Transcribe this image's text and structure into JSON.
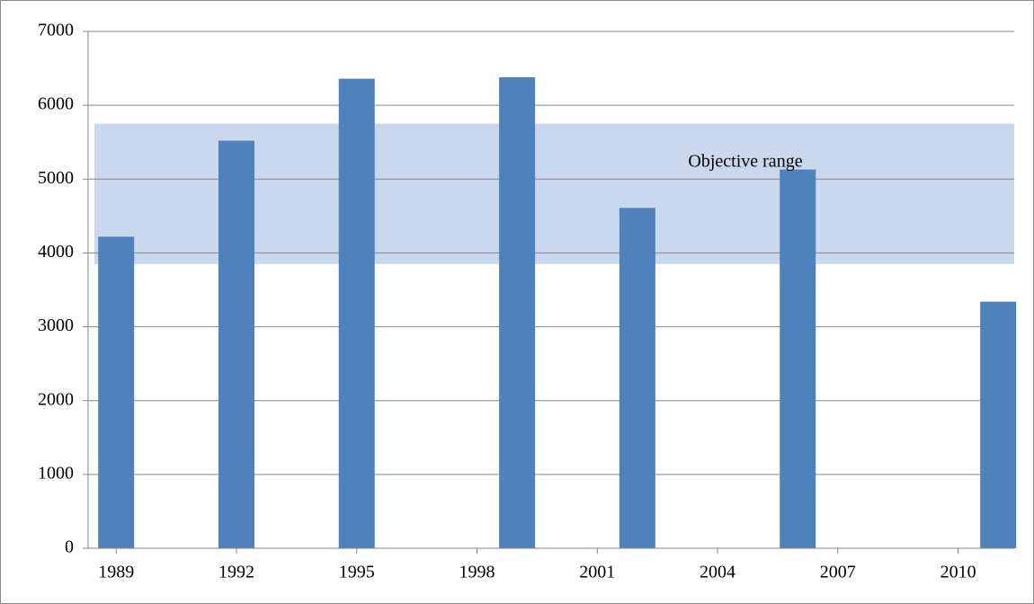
{
  "chart_data": {
    "type": "bar",
    "x": [
      1989,
      1992,
      1995,
      1999,
      2002,
      2006,
      2011
    ],
    "values": [
      4220,
      5520,
      6360,
      6380,
      4610,
      5130,
      3340
    ],
    "color": "#4f81bd",
    "xlim": [
      1988.3,
      2011.4
    ],
    "xticks": [
      1989,
      1992,
      1995,
      1998,
      2001,
      2004,
      2007,
      2010
    ],
    "ylim": [
      0,
      7000
    ],
    "yticks": [
      0,
      1000,
      2000,
      3000,
      4000,
      5000,
      6000,
      7000
    ],
    "grid": true,
    "band": {
      "label": "Objective range",
      "low": 3850,
      "high": 5750,
      "color": "#c9d8ec"
    }
  }
}
